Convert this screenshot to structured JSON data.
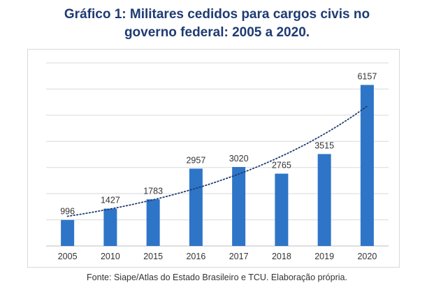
{
  "title_line1": "Gráfico 1: Militares cedidos para cargos civis no",
  "title_line2": "governo federal: 2005 a 2020.",
  "source": "Fonte: Siape/Atlas do Estado Brasileiro e TCU. Elaboração própria.",
  "colors": {
    "bar": "#2e75c8",
    "trendline": "#1f3b73",
    "gridline": "#d9d9d9",
    "title": "#1f3b73"
  },
  "chart_data": {
    "type": "bar",
    "title": "Gráfico 1: Militares cedidos para cargos civis no governo federal: 2005 a 2020.",
    "xlabel": "",
    "ylabel": "",
    "categories": [
      "2005",
      "2010",
      "2015",
      "2016",
      "2017",
      "2018",
      "2019",
      "2020"
    ],
    "values": [
      996,
      1427,
      1783,
      2957,
      3020,
      2765,
      3515,
      6157
    ],
    "data_labels": [
      "996",
      "1427",
      "1783",
      "2957",
      "3020",
      "2765",
      "3515",
      "6157"
    ],
    "ylim": [
      0,
      7000
    ],
    "y_tick_labels_visible": false,
    "grid": true,
    "trendline": {
      "type": "exponential",
      "style": "dotted"
    },
    "legend": "none"
  }
}
